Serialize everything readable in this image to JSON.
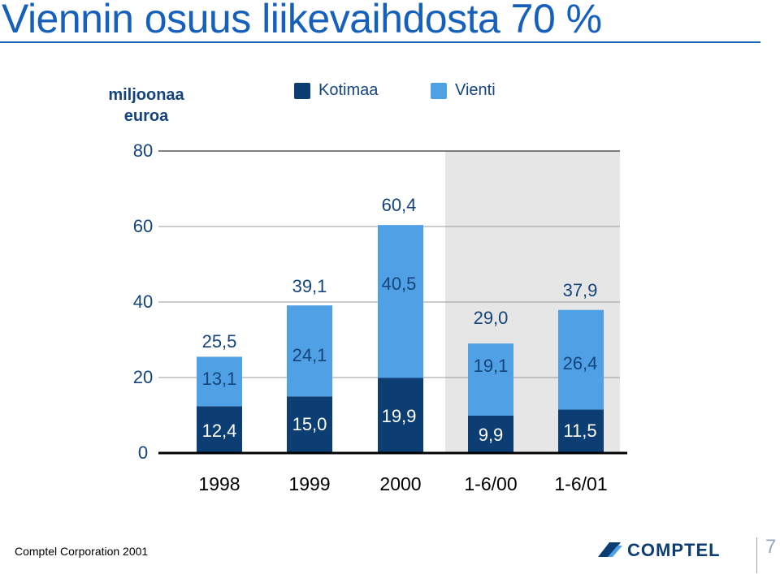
{
  "slide": {
    "title": "Viennin osuus liikevaihdosta 70 %",
    "footer": "Comptel Corporation 2001",
    "page_number": "7",
    "logo_text": "COMPTEL"
  },
  "colors": {
    "kotimaa": "#0d3e73",
    "vienti": "#4fa0e4",
    "highlight_bg": "#e6e6e6",
    "title": "#1560bd",
    "axis_text": "#14447b"
  },
  "icons": {
    "logo": "comptel-logo-icon"
  },
  "chart_data": {
    "type": "bar",
    "stacked": true,
    "title": "",
    "xlabel": "",
    "ylabel": "miljoonaa euroa",
    "ylim": [
      0,
      80
    ],
    "yticks": [
      "0",
      "20",
      "40",
      "60",
      "80"
    ],
    "grid": false,
    "legend_placement": "top",
    "categories": [
      "1998",
      "1999",
      "2000",
      "1-6/00",
      "1-6/01"
    ],
    "highlighted_categories": [
      "1-6/00",
      "1-6/01"
    ],
    "series": [
      {
        "name": "Kotimaa",
        "values": [
          12.4,
          15.0,
          19.9,
          9.9,
          11.5
        ],
        "labels": [
          "12,4",
          "15,0",
          "19,9",
          "9,9",
          "11,5"
        ]
      },
      {
        "name": "Vienti",
        "values": [
          13.1,
          24.1,
          40.5,
          19.1,
          26.4
        ],
        "labels": [
          "13,1",
          "24,1",
          "40,5",
          "19,1",
          "26,4"
        ]
      }
    ],
    "totals": [
      25.5,
      39.1,
      60.4,
      29.0,
      37.9
    ],
    "total_labels": [
      "25,5",
      "39,1",
      "60,4",
      "29,0",
      "37,9"
    ]
  }
}
